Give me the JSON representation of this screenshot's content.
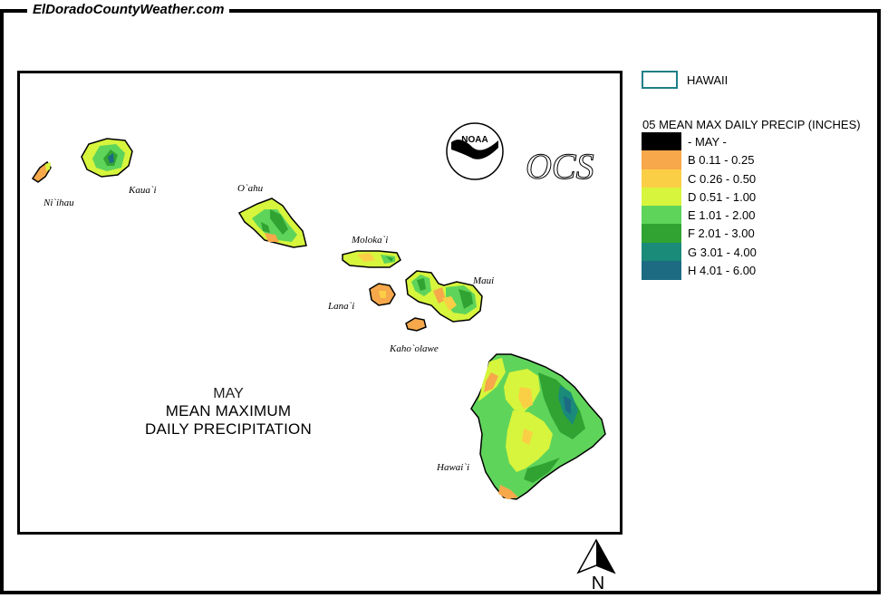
{
  "site": {
    "title": "ElDoradoCountyWeather.com"
  },
  "map": {
    "month_title": "MAY",
    "title_line1": "MEAN MAXIMUM",
    "title_line2": "DAILY PRECIPITATION",
    "logo_noaa": "NOAA",
    "logo_ocs": "OCS",
    "north_label": "N",
    "islands": [
      {
        "name": "Ni`ihau"
      },
      {
        "name": "Kaua`i"
      },
      {
        "name": "O`ahu"
      },
      {
        "name": "Moloka`i"
      },
      {
        "name": "Lana`i"
      },
      {
        "name": "Maui"
      },
      {
        "name": "Kaho`olawe"
      },
      {
        "name": "Hawai`i"
      }
    ]
  },
  "legend": {
    "boundary_label": "HAWAII",
    "boundary_color": "#1f7f86",
    "title": "05 MEAN MAX DAILY PRECIP (INCHES)",
    "items": [
      {
        "label": "- MAY -",
        "color": "#000000"
      },
      {
        "label": "B 0.11 - 0.25",
        "color": "#f6a84b"
      },
      {
        "label": "C 0.26 - 0.50",
        "color": "#fbcf45"
      },
      {
        "label": "D 0.51 - 1.00",
        "color": "#d7f53c"
      },
      {
        "label": "E 1.01 - 2.00",
        "color": "#5fd45b"
      },
      {
        "label": "F 2.01 - 3.00",
        "color": "#31a332"
      },
      {
        "label": "G 3.01 - 4.00",
        "color": "#1a8a79"
      },
      {
        "label": "H 4.01 - 6.00",
        "color": "#1c6b83"
      }
    ]
  }
}
